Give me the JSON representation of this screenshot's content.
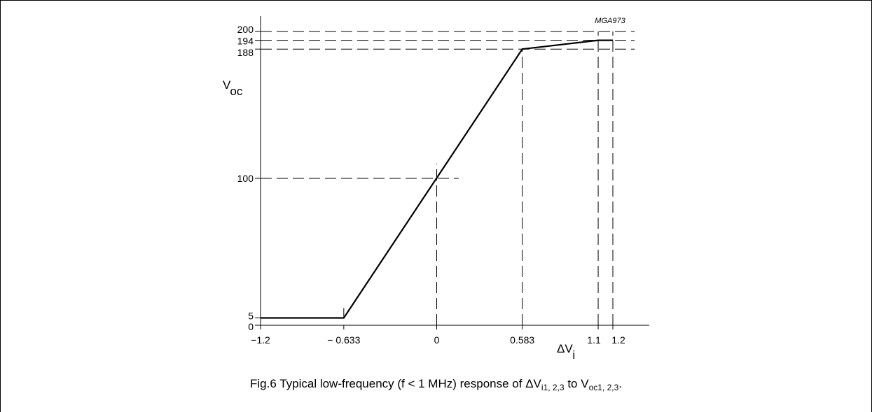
{
  "figure_id": "MGA973",
  "caption": {
    "prefix": "Fig.6  Typical low-frequency (f < 1 MHz) response of ",
    "dv_symbol": "ΔV",
    "dv_sub": "i1, 2,3",
    "middle": " to ",
    "v_symbol": "V",
    "v_sub": "oc1, 2,3",
    "suffix": "."
  },
  "chart_data": {
    "type": "line",
    "title": "",
    "xlabel": {
      "symbol": "ΔV",
      "sub": "i"
    },
    "ylabel": {
      "symbol": "V",
      "sub": "oc"
    },
    "xlim": [
      -1.2,
      1.2
    ],
    "ylim": [
      0,
      200
    ],
    "x_ticks": [
      {
        "value": -1.2,
        "label": "−1.2"
      },
      {
        "value": -0.633,
        "label": "− 0.633"
      },
      {
        "value": 0,
        "label": "0"
      },
      {
        "value": 0.583,
        "label": "0.583"
      },
      {
        "value": 1.1,
        "label": "1.1"
      },
      {
        "value": 1.2,
        "label": "1.2"
      }
    ],
    "y_ticks": [
      {
        "value": 0,
        "label": "0"
      },
      {
        "value": 5,
        "label": "5"
      },
      {
        "value": 100,
        "label": "100"
      },
      {
        "value": 188,
        "label": "188"
      },
      {
        "value": 194,
        "label": "194"
      },
      {
        "value": 200,
        "label": "200"
      }
    ],
    "series": [
      {
        "x": [
          -1.2,
          -0.633,
          0.583,
          1.1,
          1.2
        ],
        "y": [
          5,
          5,
          188,
          194,
          194
        ]
      }
    ],
    "reference_lines": {
      "horizontal": [
        {
          "y": 100,
          "x_from": -1.2,
          "x_to": 0.15
        },
        {
          "y": 188,
          "x_from": -1.2,
          "x_to": 1.2
        },
        {
          "y": 194,
          "x_from": -1.2,
          "x_to": 1.2
        },
        {
          "y": 200,
          "x_from": -1.2,
          "x_to": 1.2
        }
      ],
      "vertical": [
        {
          "x": 0,
          "y_from": 0,
          "y_to": 110
        },
        {
          "x": 0.583,
          "y_from": 0,
          "y_to": 188
        },
        {
          "x": 1.1,
          "y_from": 0,
          "y_to": 200
        },
        {
          "x": 1.2,
          "y_from": 0,
          "y_to": 200
        }
      ]
    },
    "grid": false,
    "legend": "none",
    "line_color": "#000000"
  }
}
